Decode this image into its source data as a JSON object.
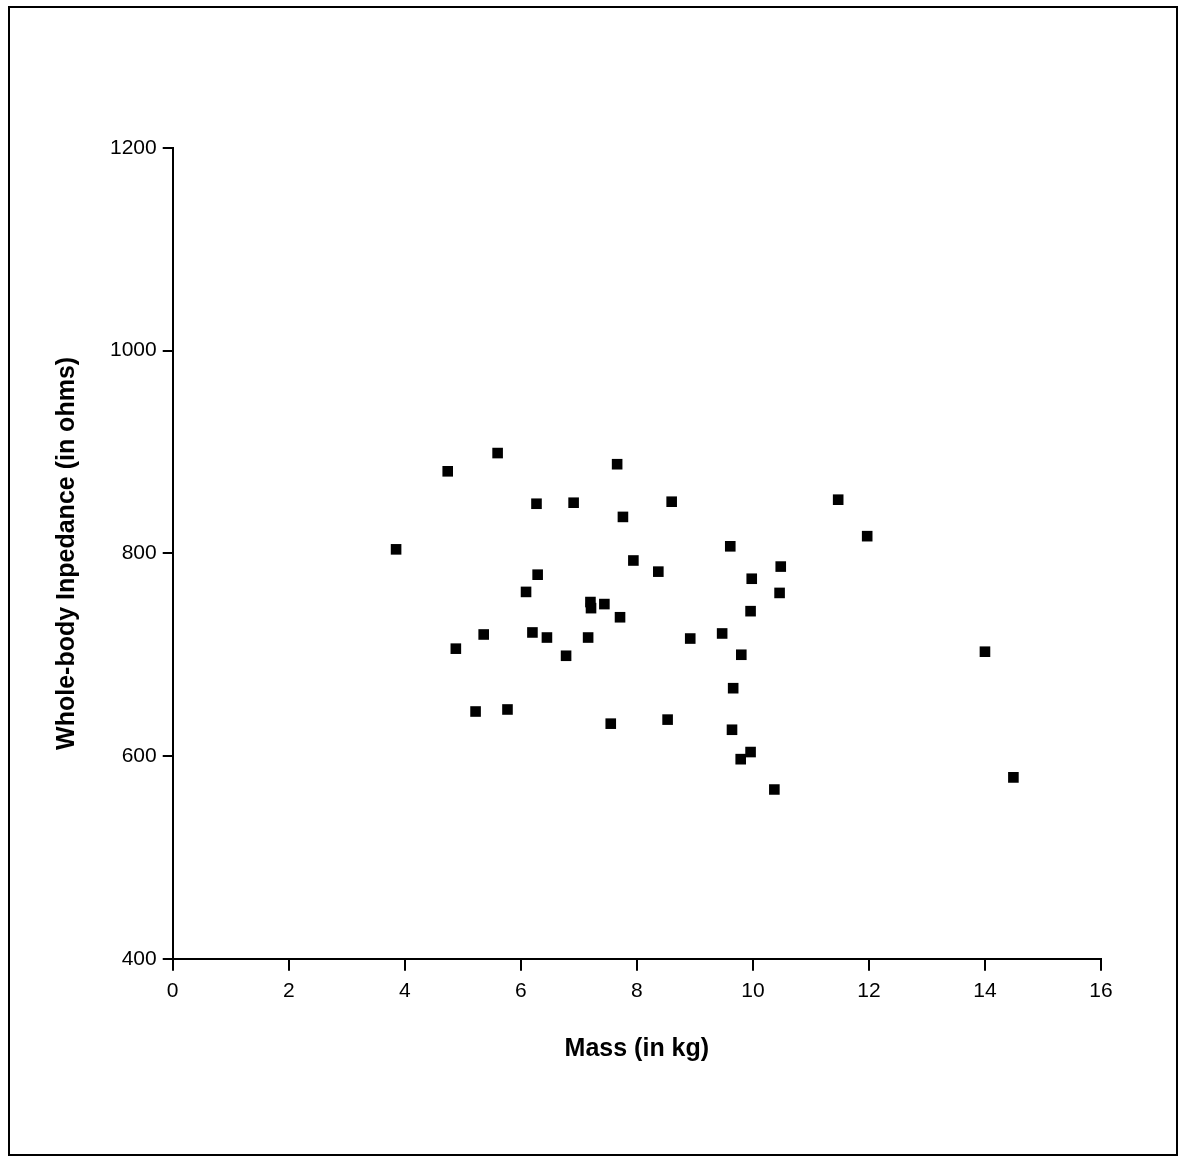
{
  "chart_data": {
    "type": "scatter",
    "xlabel": "Mass (in kg)",
    "ylabel": "Whole-body Inpedance (in ohms)",
    "x": [
      3.85,
      4.74,
      5.6,
      4.88,
      5.36,
      5.22,
      5.77,
      6.27,
      6.29,
      6.09,
      6.2,
      6.45,
      6.91,
      6.78,
      7.16,
      7.2,
      7.21,
      7.44,
      7.66,
      7.76,
      7.71,
      7.55,
      7.94,
      8.37,
      8.6,
      8.53,
      8.92,
      9.47,
      9.61,
      9.66,
      9.64,
      9.8,
      9.79,
      9.96,
      9.98,
      9.96,
      10.48,
      10.46,
      10.37,
      11.47,
      11.97,
      14.0,
      14.49
    ],
    "values": [
      804,
      881,
      899,
      706,
      720,
      644,
      646,
      849,
      779,
      762,
      722,
      717,
      850,
      699,
      717,
      752,
      746,
      750,
      888,
      836,
      737,
      632,
      793,
      782,
      851,
      636,
      716,
      721,
      807,
      667,
      626,
      700,
      597,
      604,
      775,
      743,
      787,
      761,
      567,
      853,
      817,
      703,
      579
    ],
    "color": "#000000",
    "marker": "square",
    "xlim": [
      0,
      16
    ],
    "xticks": [
      0,
      2,
      4,
      6,
      8,
      10,
      12,
      14,
      16
    ],
    "ylim": [
      400,
      1200
    ],
    "yticks": [
      400,
      600,
      800,
      1000,
      1200
    ],
    "grid": false,
    "legend": false
  }
}
